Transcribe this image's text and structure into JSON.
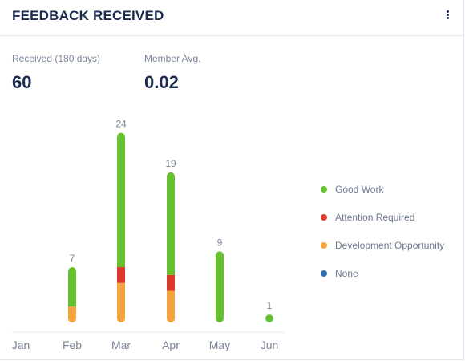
{
  "card": {
    "title": "FEEDBACK RECEIVED"
  },
  "stats": {
    "received_label": "Received (180 days)",
    "received_value": "60",
    "avg_label": "Member Avg.",
    "avg_value": "0.02"
  },
  "colors": {
    "good_work": "#66c12e",
    "attention_required": "#e0372c",
    "development_opportunity": "#f4a43a",
    "none": "#2c6fb0"
  },
  "chart_data": {
    "type": "bar",
    "stacked": true,
    "categories": [
      "Jan",
      "Feb",
      "Mar",
      "Apr",
      "May",
      "Jun"
    ],
    "series": [
      {
        "name": "Good Work",
        "values": [
          0,
          5,
          17,
          13,
          9,
          1
        ]
      },
      {
        "name": "Attention Required",
        "values": [
          0,
          0,
          2,
          2,
          0,
          0
        ]
      },
      {
        "name": "Development Opportunity",
        "values": [
          0,
          2,
          5,
          4,
          0,
          0
        ]
      },
      {
        "name": "None",
        "values": [
          0,
          0,
          0,
          0,
          0,
          0
        ]
      }
    ],
    "totals": [
      0,
      7,
      24,
      19,
      9,
      1
    ],
    "total_labels": [
      "",
      "7",
      "24",
      "19",
      "9",
      "1"
    ],
    "ylim": [
      0,
      24
    ],
    "grid": false,
    "legend_position": "right"
  }
}
